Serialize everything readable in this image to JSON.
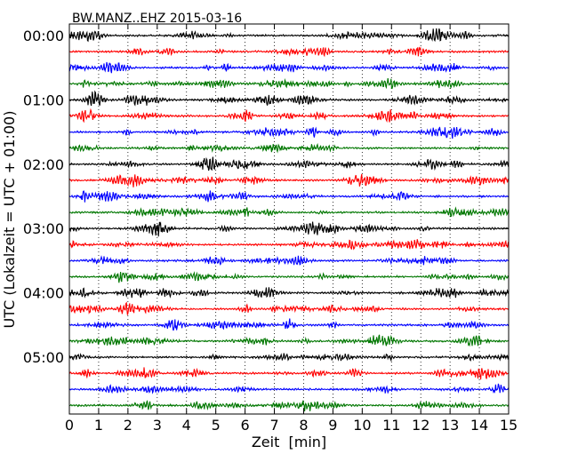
{
  "chart_data": {
    "type": "line",
    "title": "BW.MANZ..EHZ 2015-03-16",
    "xlabel": "Zeit  [min]",
    "ylabel": "UTC (Lokalzeit = UTC + 01:00)",
    "xlim": [
      0,
      15
    ],
    "x_ticks": [
      0,
      1,
      2,
      3,
      4,
      5,
      6,
      7,
      8,
      9,
      10,
      11,
      12,
      13,
      14,
      15
    ],
    "x_tick_labels": [
      "0",
      "1",
      "2",
      "3",
      "4",
      "5",
      "6",
      "7",
      "8",
      "9",
      "10",
      "11",
      "12",
      "13",
      "14",
      "15"
    ],
    "y_tick_labels": [
      "00:00",
      "01:00",
      "02:00",
      "03:00",
      "04:00",
      "05:00"
    ],
    "trace_interval_minutes": 15,
    "trace_count": 24,
    "trace_colors": [
      "#000000",
      "#ff0000",
      "#0000ff",
      "#007700"
    ],
    "grid": "vertical dotted"
  }
}
